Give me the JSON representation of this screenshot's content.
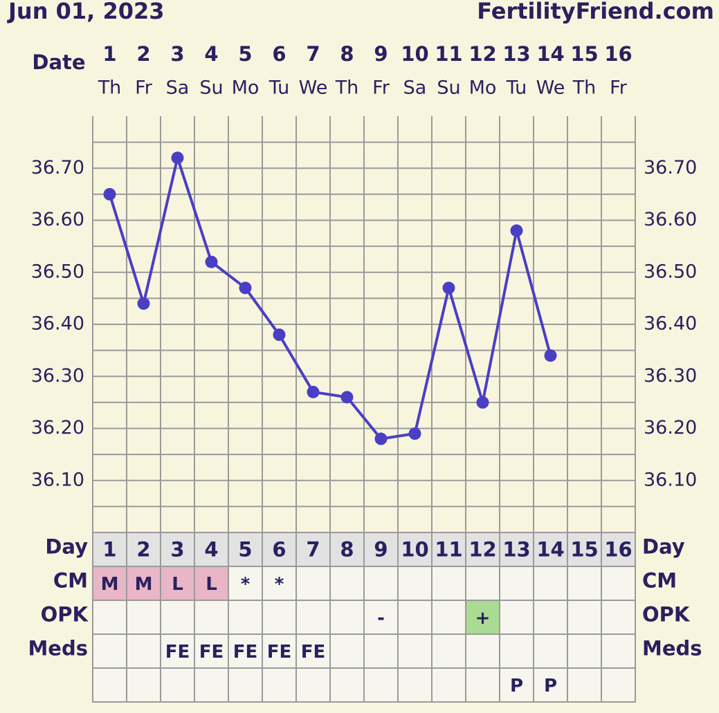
{
  "chart_data": {
    "type": "line",
    "title": "Jun 01, 2023",
    "subtitle": "FertilityFriend.com",
    "x_label": "Date",
    "categories": [
      "1",
      "2",
      "3",
      "4",
      "5",
      "6",
      "7",
      "8",
      "9",
      "10",
      "11",
      "12",
      "13",
      "14",
      "15",
      "16"
    ],
    "weekdays": [
      "Th",
      "Fr",
      "Sa",
      "Su",
      "Mo",
      "Tu",
      "We",
      "Th",
      "Fr",
      "Sa",
      "Su",
      "Mo",
      "Tu",
      "We",
      "Th",
      "Fr"
    ],
    "values": [
      36.65,
      36.44,
      36.72,
      36.52,
      36.47,
      36.38,
      36.27,
      36.26,
      36.18,
      36.19,
      36.47,
      36.25,
      36.58,
      36.34,
      null,
      null
    ],
    "color": "#4a3fc4",
    "ylim": [
      36.0,
      36.8
    ],
    "yticks": [
      {
        "value": 36.1,
        "label": "36.10"
      },
      {
        "value": 36.2,
        "label": "36.20"
      },
      {
        "value": 36.3,
        "label": "36.30"
      },
      {
        "value": 36.4,
        "label": "36.40"
      },
      {
        "value": 36.5,
        "label": "36.50"
      },
      {
        "value": 36.6,
        "label": "36.60"
      },
      {
        "value": 36.7,
        "label": "36.70"
      }
    ],
    "minor_yticks": [
      36.05,
      36.15,
      36.25,
      36.35,
      36.45,
      36.55,
      36.65,
      36.75
    ],
    "grid": true
  },
  "table": {
    "rows": [
      {
        "label": "Day",
        "cells": [
          1,
          2,
          3,
          4,
          5,
          6,
          7,
          8,
          9,
          10,
          11,
          12,
          13,
          14,
          15,
          16
        ],
        "background": "#e2e2e2"
      },
      {
        "label": "CM",
        "cells": [
          "M",
          "M",
          "L",
          "L",
          "*",
          "*",
          null,
          null,
          null,
          null,
          null,
          null,
          null,
          null,
          null,
          null
        ],
        "colors": [
          "#e8b6c6",
          "#e8b6c6",
          "#e8b6c6",
          "#e8b6c6",
          null,
          null,
          null,
          null,
          null,
          null,
          null,
          null,
          null,
          null,
          null,
          null
        ]
      },
      {
        "label": "OPK",
        "cells": [
          null,
          null,
          null,
          null,
          null,
          null,
          null,
          null,
          "-",
          null,
          null,
          "+",
          null,
          null,
          null,
          null
        ],
        "colors": [
          null,
          null,
          null,
          null,
          null,
          null,
          null,
          null,
          null,
          null,
          null,
          "#a9dc92",
          null,
          null,
          null,
          null
        ]
      },
      {
        "label": "Meds",
        "cells": [
          null,
          null,
          "FE",
          "FE",
          "FE",
          "FE",
          "FE",
          null,
          null,
          null,
          null,
          null,
          null,
          null,
          null,
          null
        ]
      },
      {
        "cells": [
          null,
          null,
          null,
          null,
          null,
          null,
          null,
          null,
          null,
          null,
          null,
          null,
          "P",
          "P",
          null,
          null
        ]
      }
    ]
  }
}
